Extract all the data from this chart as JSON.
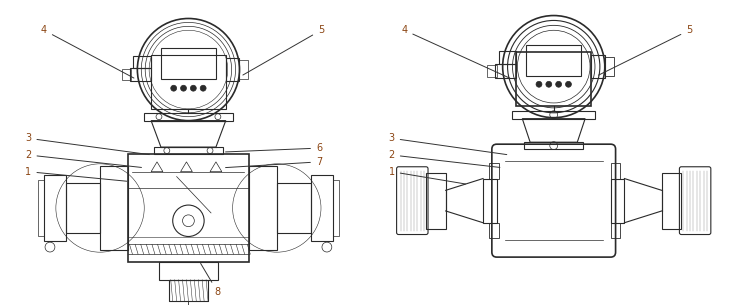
{
  "bg_color": "#ffffff",
  "line_color": "#2a2a2a",
  "label_color": "#8B4513",
  "annotation_line_color": "#333333",
  "fig_width": 7.5,
  "fig_height": 3.08,
  "dpi": 100
}
